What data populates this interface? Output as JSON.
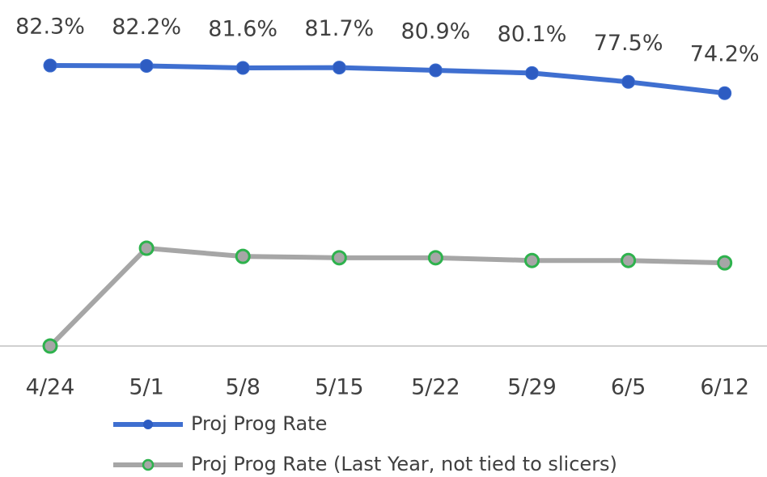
{
  "chart_data": {
    "type": "line",
    "categories": [
      "4/24",
      "5/1",
      "5/8",
      "5/15",
      "5/22",
      "5/29",
      "6/5",
      "6/12"
    ],
    "series": [
      {
        "name": "Proj Prog Rate",
        "color": "#3f6fd0",
        "marker_color": "#2d5cc2",
        "values": [
          82.3,
          82.2,
          81.6,
          81.7,
          80.9,
          80.1,
          77.5,
          74.2
        ],
        "value_labels": [
          "82.3%",
          "82.2%",
          "81.6%",
          "81.7%",
          "80.9%",
          "80.1%",
          "77.5%",
          "74.2%"
        ]
      },
      {
        "name": "Proj Prog Rate (Last Year, not tied to slicers)",
        "color": "#a6a6a6",
        "marker_color": "#2eb24d",
        "values": [
          0,
          28.7,
          26.3,
          25.9,
          25.9,
          25.1,
          25.1,
          24.4
        ]
      }
    ],
    "ylim": [
      0,
      90
    ],
    "legend": "bottom"
  }
}
